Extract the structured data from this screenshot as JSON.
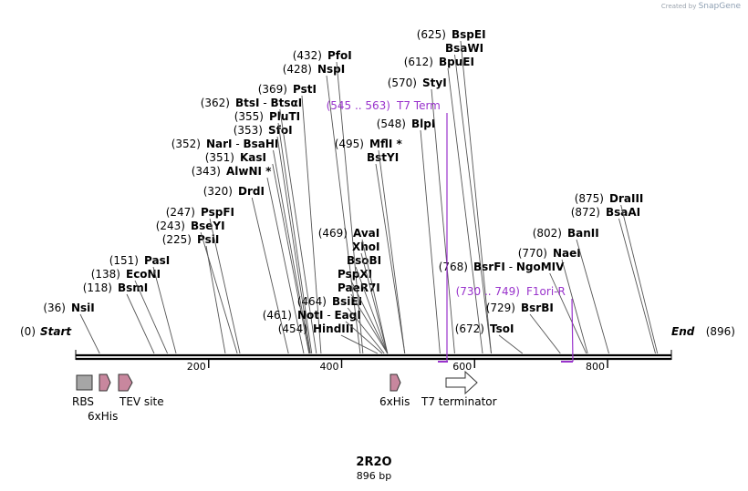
{
  "watermark": {
    "prefix": "Created by",
    "brand": "SnapGene"
  },
  "title": "2R2O",
  "length_label": "896 bp",
  "seq_length": 896,
  "ticks": [
    {
      "pos": 200,
      "label": "200"
    },
    {
      "pos": 400,
      "label": "400"
    },
    {
      "pos": 600,
      "label": "600"
    },
    {
      "pos": 800,
      "label": "800"
    }
  ],
  "ends": {
    "start": {
      "pos": "(0)",
      "label": "Start"
    },
    "end": {
      "pos": "(896)",
      "label": "End"
    }
  },
  "sites": [
    {
      "pos": "(36)",
      "names": [
        "NsiI"
      ],
      "site": 36
    },
    {
      "pos": "(118)",
      "names": [
        "BsmI"
      ],
      "site": 118
    },
    {
      "pos": "(138)",
      "names": [
        "EcoNI"
      ],
      "site": 138
    },
    {
      "pos": "(151)",
      "names": [
        "PasI"
      ],
      "site": 151
    },
    {
      "pos": "(225)",
      "names": [
        "PsiI"
      ],
      "site": 225
    },
    {
      "pos": "(243)",
      "names": [
        "BseYI"
      ],
      "site": 243
    },
    {
      "pos": "(247)",
      "names": [
        "PspFI"
      ],
      "site": 247
    },
    {
      "pos": "(320)",
      "names": [
        "DrdI"
      ],
      "site": 320
    },
    {
      "pos": "(343)",
      "names": [
        "AlwNI *"
      ],
      "site": 343
    },
    {
      "pos": "(351)",
      "names": [
        "KasI"
      ],
      "site": 351
    },
    {
      "pos": "(352)",
      "names": [
        "NarI",
        "BsaHI"
      ],
      "site": 352
    },
    {
      "pos": "(353)",
      "names": [
        "SfoI"
      ],
      "site": 353
    },
    {
      "pos": "(355)",
      "names": [
        "PluTI"
      ],
      "site": 355
    },
    {
      "pos": "(362)",
      "names": [
        "BtsI",
        "BtsαI"
      ],
      "site": 362
    },
    {
      "pos": "(369)",
      "names": [
        "PstI"
      ],
      "site": 369
    },
    {
      "pos": "(428)",
      "names": [
        "NspI"
      ],
      "site": 428
    },
    {
      "pos": "(432)",
      "names": [
        "PfoI"
      ],
      "site": 432
    },
    {
      "pos": "(454)",
      "names": [
        "HindIII"
      ],
      "site": 454
    },
    {
      "pos": "(461)",
      "names": [
        "NotI",
        "EagI"
      ],
      "site": 461
    },
    {
      "pos": "(464)",
      "names": [
        "BsiEI"
      ],
      "site": 464
    },
    {
      "pos": "",
      "names": [
        "PaeR7I"
      ],
      "site": 469
    },
    {
      "pos": "",
      "names": [
        "PspXI"
      ],
      "site": 469
    },
    {
      "pos": "",
      "names": [
        "BsoBI"
      ],
      "site": 469
    },
    {
      "pos": "",
      "names": [
        "XhoI"
      ],
      "site": 469
    },
    {
      "pos": "(469)",
      "names": [
        "AvaI"
      ],
      "site": 469
    },
    {
      "pos": "",
      "names": [
        "BstYI"
      ],
      "site": 495
    },
    {
      "pos": "(495)",
      "names": [
        "MflI *"
      ],
      "site": 495
    },
    {
      "pos": "(548)",
      "names": [
        "BlpI"
      ],
      "site": 548
    },
    {
      "pos": "(570)",
      "names": [
        "StyI"
      ],
      "site": 570
    },
    {
      "pos": "(612)",
      "names": [
        "BpuEI"
      ],
      "site": 612
    },
    {
      "pos": "",
      "names": [
        "BsaWI"
      ],
      "site": 625
    },
    {
      "pos": "(625)",
      "names": [
        "BspEI"
      ],
      "site": 625
    },
    {
      "pos": "(672)",
      "names": [
        "TsoI"
      ],
      "site": 672
    },
    {
      "pos": "(729)",
      "names": [
        "BsrBI"
      ],
      "site": 729
    },
    {
      "pos": "(768)",
      "names": [
        "BsrFI",
        "NgoMIV"
      ],
      "site": 768
    },
    {
      "pos": "(770)",
      "names": [
        "NaeI"
      ],
      "site": 770
    },
    {
      "pos": "(802)",
      "names": [
        "BanII"
      ],
      "site": 802
    },
    {
      "pos": "(872)",
      "names": [
        "BsaAI"
      ],
      "site": 872
    },
    {
      "pos": "(875)",
      "names": [
        "DraIII"
      ],
      "site": 875
    }
  ],
  "primers": [
    {
      "range": "(545 .. 563)",
      "name": "T7 Term"
    },
    {
      "range": "(730 .. 749)",
      "name": "F1ori-R"
    }
  ],
  "features": [
    {
      "label": "RBS",
      "type": "rbs"
    },
    {
      "label": "6xHis",
      "type": "tag"
    },
    {
      "label": "TEV site",
      "type": "tag"
    },
    {
      "label": "6xHis",
      "type": "tag"
    },
    {
      "label": "T7 terminator",
      "type": "terminator"
    }
  ],
  "colors": {
    "primer": "#9933cc",
    "tag": "#c8879e",
    "rbs": "#a6a6a6",
    "line": "#555555"
  }
}
